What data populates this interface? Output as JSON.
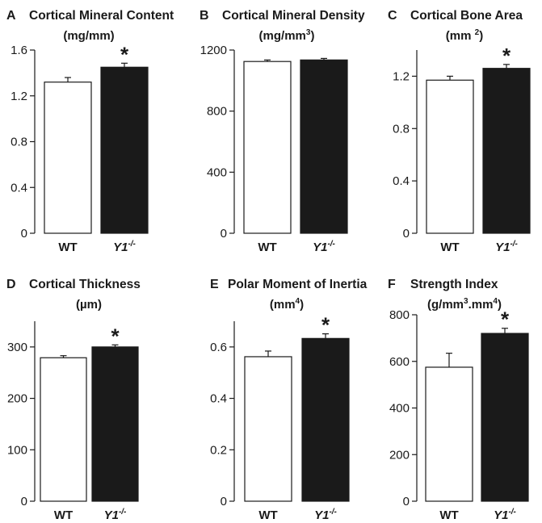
{
  "colors": {
    "wt_fill": "#ffffff",
    "y1_fill": "#1a1a1a",
    "stroke": "#1a1a1a"
  },
  "chart_data": [
    {
      "type": "bar",
      "letter": "A",
      "title": "Cortical Mineral Content",
      "unit": "(mg/mm)",
      "categories": [
        "WT",
        "Y1"
      ],
      "category_superscripts": [
        "",
        "-/-"
      ],
      "values": [
        1.32,
        1.45
      ],
      "errors": [
        0.04,
        0.035
      ],
      "significant": [
        false,
        true
      ],
      "significance_mark": "*",
      "ylim": [
        0,
        1.6
      ],
      "yticks": [
        0,
        0.4,
        0.8,
        1.2,
        1.6
      ],
      "ytick_labels": [
        "0",
        "0.4",
        "0.8",
        "1.2",
        "1.6"
      ]
    },
    {
      "type": "bar",
      "letter": "B",
      "title": "Cortical Mineral Density",
      "unit": "(mg/mm",
      "unit_sup": "3",
      "unit_after": ")",
      "categories": [
        "WT",
        "Y1"
      ],
      "category_superscripts": [
        "",
        "-/-"
      ],
      "values": [
        1125,
        1135
      ],
      "errors": [
        10,
        10
      ],
      "significant": [
        false,
        false
      ],
      "significance_mark": "*",
      "ylim": [
        0,
        1200
      ],
      "yticks": [
        0,
        400,
        800,
        1200
      ],
      "ytick_labels": [
        "0",
        "400",
        "800",
        "1200"
      ]
    },
    {
      "type": "bar",
      "letter": "C",
      "title": "Cortical Bone Area",
      "unit": "(mm ",
      "unit_sup": "2",
      "unit_after": ")",
      "categories": [
        "WT",
        "Y1"
      ],
      "category_superscripts": [
        "",
        "-/-"
      ],
      "values": [
        1.17,
        1.26
      ],
      "errors": [
        0.03,
        0.03
      ],
      "significant": [
        false,
        true
      ],
      "significance_mark": "*",
      "ylim": [
        0,
        1.4
      ],
      "yticks": [
        0,
        0.4,
        0.8,
        1.2
      ],
      "ytick_labels": [
        "0",
        "0.4",
        "0.8",
        "1.2"
      ]
    },
    {
      "type": "bar",
      "letter": "D",
      "title": "Cortical Thickness",
      "unit": "(µm)",
      "categories": [
        "WT",
        "Y1"
      ],
      "category_superscripts": [
        "",
        "-/-"
      ],
      "values": [
        279,
        300
      ],
      "errors": [
        4,
        4
      ],
      "significant": [
        false,
        true
      ],
      "significance_mark": "*",
      "ylim": [
        0,
        350
      ],
      "yticks": [
        0,
        100,
        200,
        300
      ],
      "ytick_labels": [
        "0",
        "100",
        "200",
        "300"
      ]
    },
    {
      "type": "bar",
      "letter": "E",
      "title": "Polar Moment of Inertia",
      "unit": "(mm",
      "unit_sup": "4",
      "unit_after": ")",
      "categories": [
        "WT",
        "Y1"
      ],
      "category_superscripts": [
        "",
        "-/-"
      ],
      "values": [
        0.562,
        0.633
      ],
      "errors": [
        0.022,
        0.018
      ],
      "significant": [
        false,
        true
      ],
      "significance_mark": "*",
      "ylim": [
        0,
        0.7
      ],
      "yticks": [
        0,
        0.2,
        0.4,
        0.6
      ],
      "ytick_labels": [
        "0",
        "0.2",
        "0.4",
        "0.6"
      ]
    },
    {
      "type": "bar",
      "letter": "F",
      "title": "Strength Index",
      "unit": "(g/mm",
      "unit_sup": "3",
      "unit_mid": ".mm",
      "unit_sup2": "4",
      "unit_after": ")",
      "categories": [
        "WT",
        "Y1"
      ],
      "category_superscripts": [
        "",
        "-/-"
      ],
      "values": [
        575,
        720
      ],
      "errors": [
        60,
        22
      ],
      "significant": [
        false,
        true
      ],
      "significance_mark": "*",
      "ylim": [
        0,
        800
      ],
      "yticks": [
        0,
        200,
        400,
        600,
        800
      ],
      "ytick_labels": [
        "0",
        "200",
        "400",
        "600",
        "800"
      ]
    }
  ]
}
